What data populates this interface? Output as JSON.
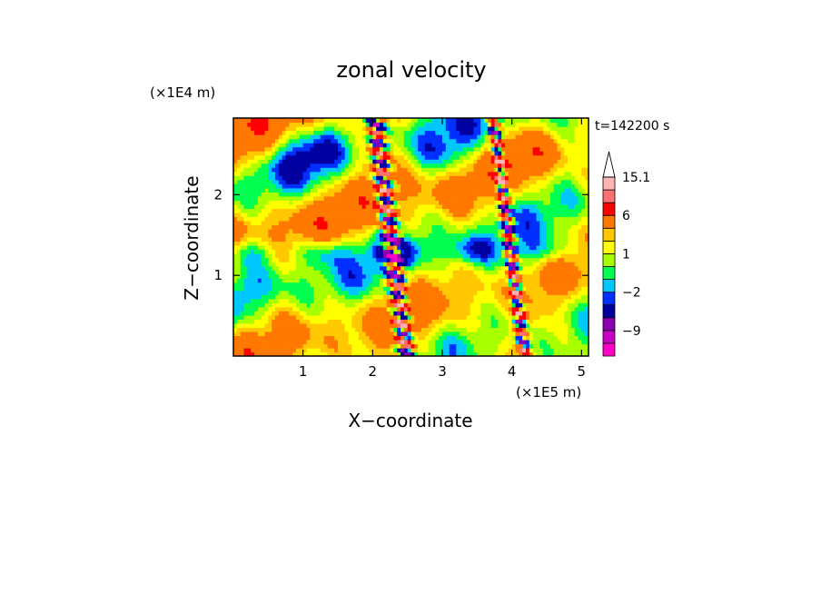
{
  "chart_data": {
    "type": "heatmap",
    "title": "zonal velocity",
    "xlabel": "X−coordinate",
    "ylabel": "Z−coordinate",
    "x_unit": "(×1E5 m)",
    "y_unit": "(×1E4 m)",
    "time_label": "t=142200 s",
    "xlim": [
      0,
      5.1
    ],
    "ylim": [
      0,
      2.95
    ],
    "x_ticks": [
      1,
      2,
      3,
      4,
      5
    ],
    "y_ticks": [
      1,
      2
    ],
    "x_tick_labels": [
      "1",
      "2",
      "3",
      "4",
      "5"
    ],
    "y_tick_labels": [
      "1",
      "2"
    ],
    "colorbar": {
      "levels": [
        -15.1,
        -12,
        -9,
        -6,
        -3,
        -2,
        -1,
        0,
        1,
        2,
        3,
        6,
        9,
        12,
        15.1
      ],
      "colors": [
        "#ff00c8",
        "#c800c8",
        "#8c00b4",
        "#0000a0",
        "#0030ff",
        "#00c8ff",
        "#00ff50",
        "#a8ff00",
        "#ffff00",
        "#ffc800",
        "#ff7800",
        "#ff0000",
        "#ff7070",
        "#ffb4b4"
      ],
      "labels": [
        "15.1",
        "6",
        "1",
        "−2",
        "−9"
      ],
      "label_levels": [
        15.1,
        6,
        1,
        -2,
        -9
      ],
      "extend": "max"
    },
    "field_features": [
      {
        "x": 4.0,
        "z": 0.2,
        "width": 0.08,
        "note": "narrow vertical band of alternating strong positive/negative velocity"
      },
      {
        "x": 2.3,
        "z": 1.6,
        "width": 0.12,
        "note": "tilted band of alternating velocity"
      }
    ]
  }
}
